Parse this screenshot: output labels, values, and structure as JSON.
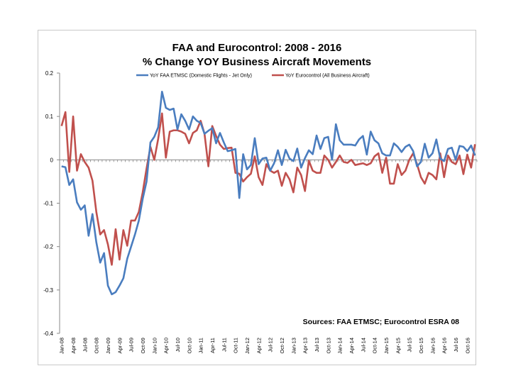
{
  "chart_data": {
    "type": "line",
    "title": "FAA and Eurocontrol:  2008 - 2016",
    "subtitle": "% Change YOY Business Aircraft Movements",
    "annotation": "Sources: FAA ETMSC; Eurocontrol ESRA 08",
    "legend_position": "top-center",
    "ylim": [
      -0.4,
      0.2
    ],
    "y_ticks": [
      "0.2",
      "0.1",
      "0",
      "-0.1",
      "-0.2",
      "-0.3",
      "-0.4"
    ],
    "y_tick_values": [
      0.2,
      0.1,
      0,
      -0.1,
      -0.2,
      -0.3,
      -0.4
    ],
    "x_tick_labels": [
      "Jan-08",
      "Apr-08",
      "Jul-08",
      "Oct-08",
      "Jan-09",
      "Apr-09",
      "Jul-09",
      "Oct-09",
      "Jan-10",
      "Apr-10",
      "Jul-10",
      "Oct-10",
      "Jan-11",
      "Apr-11",
      "Jul-11",
      "Oct-11",
      "Jan-12",
      "Apr-12",
      "Jul-12",
      "Oct-12",
      "Jan-13",
      "Apr-13",
      "Jul-13",
      "Oct-13",
      "Jan-14",
      "Apr-14",
      "Jul-14",
      "Oct-14",
      "Jan-15",
      "Apr-15",
      "Jul-15",
      "Oct-15",
      "Jan-16",
      "Apr-16",
      "Jul-16",
      "Oct-16"
    ],
    "grid": false,
    "series": [
      {
        "name": "YoY FAA ETMSC (Domestic Flights - Jet Only)",
        "color": "#4a7dbf",
        "values": [
          -0.015,
          -0.017,
          -0.058,
          -0.045,
          -0.098,
          -0.115,
          -0.105,
          -0.175,
          -0.125,
          -0.19,
          -0.237,
          -0.215,
          -0.29,
          -0.31,
          -0.305,
          -0.29,
          -0.273,
          -0.228,
          -0.2,
          -0.172,
          -0.14,
          -0.09,
          -0.05,
          0.04,
          0.053,
          0.075,
          0.157,
          0.12,
          0.115,
          0.118,
          0.07,
          0.105,
          0.09,
          0.07,
          0.1,
          0.09,
          0.085,
          0.06,
          0.067,
          0.073,
          0.038,
          0.062,
          0.04,
          0.02,
          0.022,
          0.025,
          -0.088,
          0.013,
          -0.022,
          -0.012,
          0.05,
          -0.01,
          0.003,
          0.005,
          -0.025,
          -0.008,
          0.022,
          -0.012,
          0.023,
          0.003,
          -0.003,
          0.026,
          -0.018,
          0.004,
          0.022,
          0.013,
          0.056,
          0.025,
          0.05,
          0.053,
          0.0,
          0.082,
          0.045,
          0.035,
          0.035,
          0.035,
          0.033,
          0.047,
          0.055,
          0.012,
          0.065,
          0.045,
          0.038,
          0.015,
          0.01,
          0.01,
          0.038,
          0.03,
          0.018,
          0.03,
          0.035,
          0.02,
          -0.015,
          -0.005,
          0.037,
          0.005,
          0.015,
          0.047,
          0.003,
          -0.003,
          0.025,
          0.028,
          0.0,
          0.032,
          0.03,
          0.02,
          0.033,
          0.01
        ]
      },
      {
        "name": "YoY Eurocontrol (All Business Aircraft)",
        "color": "#c0504d",
        "values": [
          0.078,
          0.11,
          -0.028,
          0.1,
          -0.025,
          0.013,
          -0.005,
          -0.018,
          -0.048,
          -0.12,
          -0.172,
          -0.162,
          -0.195,
          -0.242,
          -0.16,
          -0.23,
          -0.162,
          -0.198,
          -0.14,
          -0.14,
          -0.12,
          -0.075,
          -0.02,
          0.03,
          0.0,
          0.048,
          0.107,
          0.005,
          0.065,
          0.068,
          0.068,
          0.065,
          0.06,
          0.038,
          0.062,
          0.068,
          0.09,
          0.06,
          -0.015,
          0.078,
          0.055,
          0.035,
          0.025,
          0.027,
          0.028,
          -0.03,
          -0.032,
          -0.05,
          -0.04,
          -0.032,
          0.008,
          -0.04,
          -0.058,
          -0.01,
          -0.025,
          -0.03,
          -0.025,
          -0.06,
          -0.03,
          -0.045,
          -0.075,
          -0.018,
          -0.035,
          -0.072,
          -0.002,
          -0.025,
          -0.03,
          -0.03,
          0.01,
          0.0,
          -0.018,
          -0.005,
          0.01,
          -0.005,
          -0.007,
          0.0,
          -0.012,
          -0.01,
          -0.008,
          -0.012,
          -0.008,
          0.008,
          0.015,
          -0.03,
          0.005,
          -0.055,
          -0.055,
          -0.01,
          -0.035,
          -0.025,
          0.0,
          0.015,
          -0.01,
          -0.04,
          -0.055,
          -0.03,
          -0.035,
          -0.045,
          0.015,
          -0.04,
          0.01,
          -0.005,
          -0.01,
          0.01,
          -0.033,
          0.012,
          -0.018,
          0.036
        ]
      }
    ]
  }
}
